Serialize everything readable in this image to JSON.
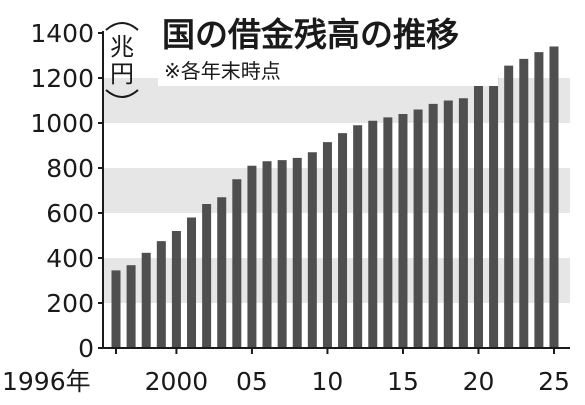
{
  "chart_data": {
    "type": "bar",
    "title": "国の借金残高の推移",
    "subtitle": "※各年末時点",
    "ylabel": "兆円",
    "ylim": [
      0,
      1400
    ],
    "yticks": [
      "0",
      "200",
      "400",
      "600",
      "800",
      "1000",
      "1200",
      "1400"
    ],
    "xtick_labels": [
      {
        "year": 1996,
        "label": "1996年"
      },
      {
        "year": 2000,
        "label": "2000"
      },
      {
        "year": 2005,
        "label": "05"
      },
      {
        "year": 2010,
        "label": "10"
      },
      {
        "year": 2015,
        "label": "15"
      },
      {
        "year": 2020,
        "label": "20"
      },
      {
        "year": 2025,
        "label": "25"
      }
    ],
    "x": [
      1996,
      1997,
      1998,
      1999,
      2000,
      2001,
      2002,
      2003,
      2004,
      2005,
      2006,
      2007,
      2008,
      2009,
      2010,
      2011,
      2012,
      2013,
      2014,
      2015,
      2016,
      2017,
      2018,
      2019,
      2020,
      2021,
      2022,
      2023,
      2024,
      2025
    ],
    "values": [
      345,
      368,
      423,
      475,
      520,
      580,
      640,
      670,
      750,
      810,
      830,
      835,
      845,
      870,
      915,
      955,
      990,
      1010,
      1025,
      1040,
      1060,
      1085,
      1100,
      1110,
      1210,
      1215,
      1255,
      1285,
      1315,
      1340
    ],
    "grid": "alternating horizontal bands",
    "bar_color": "#4f4f4f",
    "band_color": "#e6e6e6",
    "legend": "none"
  }
}
